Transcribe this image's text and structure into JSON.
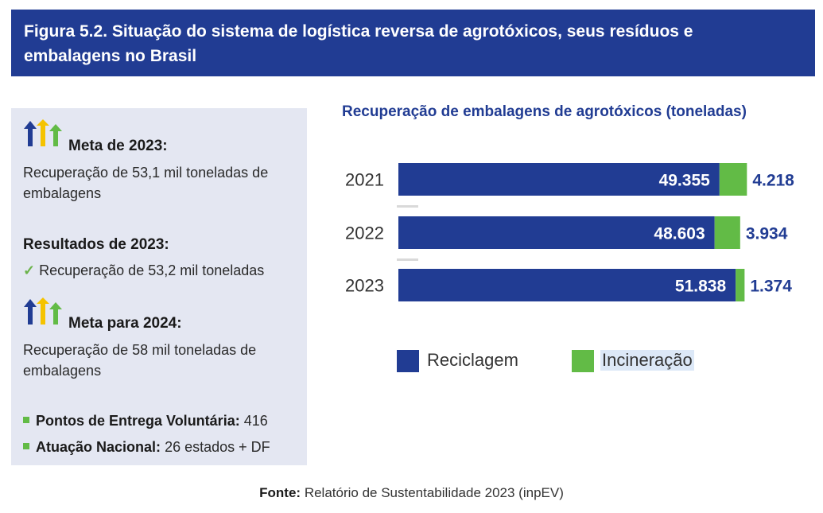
{
  "header": {
    "title": "Figura 5.2. Situação do sistema de logística reversa de agrotóxicos, seus resíduos e embalagens no Brasil"
  },
  "panel": {
    "goal_2023": {
      "title": "Meta de 2023:",
      "text": "Recuperação de 53,1 mil toneladas de embalagens"
    },
    "results_2023": {
      "title": "Resultados de 2023:",
      "check": "✓",
      "text": "Recuperação de 53,2 mil toneladas"
    },
    "goal_2024": {
      "title": "Meta para 2024:",
      "text": "Recuperação de 58 mil toneladas de embalagens"
    },
    "bullets": [
      {
        "label": "Pontos de Entrega Voluntária:",
        "value": "416"
      },
      {
        "label": "Atuação Nacional:",
        "value": "26 estados + DF"
      }
    ],
    "arrow_colors": [
      "#213c93",
      "#f5c300",
      "#62bb46"
    ]
  },
  "chart_data": {
    "type": "bar",
    "orientation": "horizontal",
    "stacked": true,
    "title": "Recuperação de embalagens de agrotóxicos (toneladas)",
    "categories": [
      "2021",
      "2022",
      "2023"
    ],
    "series": [
      {
        "name": "Reciclagem",
        "values": [
          49355,
          48603,
          51838
        ],
        "labels": [
          "49.355",
          "48.603",
          "51.838"
        ],
        "color": "#213c93"
      },
      {
        "name": "Incineração",
        "values": [
          4218,
          3934,
          1374
        ],
        "labels": [
          "4.218",
          "3.934",
          "1.374"
        ],
        "color": "#62bb46"
      }
    ],
    "legend": "bottom",
    "grid": false
  },
  "source": {
    "label": "Fonte:",
    "text": "Relatório de Sustentabilidade 2023 (inpEV)"
  }
}
